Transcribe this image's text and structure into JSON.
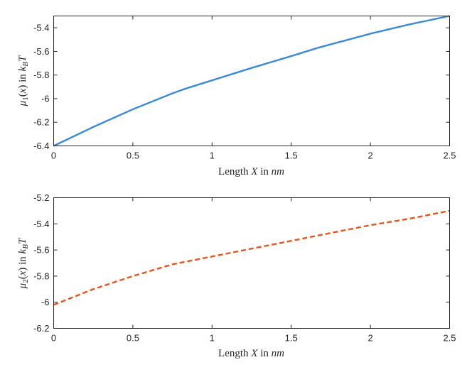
{
  "chart_data": [
    {
      "type": "line",
      "xlabel": "Length X in nm",
      "ylabel": "μ1(x) in kBT",
      "xlim": [
        0,
        2.5
      ],
      "ylim": [
        -6.4,
        -5.3
      ],
      "xticks": [
        "0",
        "0.5",
        "1",
        "1.5",
        "2",
        "2.5"
      ],
      "yticks": [
        "-5.4",
        "-5.6",
        "-5.8",
        "-6",
        "-6.2",
        "-6.4"
      ],
      "grid": false,
      "series": [
        {
          "color": "#3a8ad8",
          "line_style": "solid",
          "x": [
            0,
            0.25,
            0.5,
            0.75,
            0.833,
            1.0,
            1.25,
            1.5,
            1.667,
            1.75,
            2.0,
            2.25,
            2.5
          ],
          "y": [
            -6.4,
            -6.24,
            -6.09,
            -5.955,
            -5.915,
            -5.845,
            -5.74,
            -5.64,
            -5.57,
            -5.54,
            -5.45,
            -5.37,
            -5.3
          ]
        }
      ]
    },
    {
      "type": "line",
      "xlabel": "Length X in nm",
      "ylabel": "μ2(x) in kBT",
      "xlim": [
        0,
        2.5
      ],
      "ylim": [
        -6.2,
        -5.2
      ],
      "xticks": [
        "0",
        "0.5",
        "1",
        "1.5",
        "2",
        "2.5"
      ],
      "yticks": [
        "-5.2",
        "-5.4",
        "-5.6",
        "-5.8",
        "-6",
        "-6.2"
      ],
      "grid": false,
      "series": [
        {
          "color": "#e8541c",
          "line_style": "dashed",
          "x": [
            0,
            0.25,
            0.5,
            0.75,
            0.833,
            1.0,
            1.25,
            1.5,
            1.667,
            1.75,
            2.0,
            2.25,
            2.5
          ],
          "y": [
            -6.02,
            -5.9,
            -5.8,
            -5.71,
            -5.69,
            -5.65,
            -5.59,
            -5.53,
            -5.49,
            -5.47,
            -5.41,
            -5.36,
            -5.3
          ]
        }
      ]
    }
  ]
}
